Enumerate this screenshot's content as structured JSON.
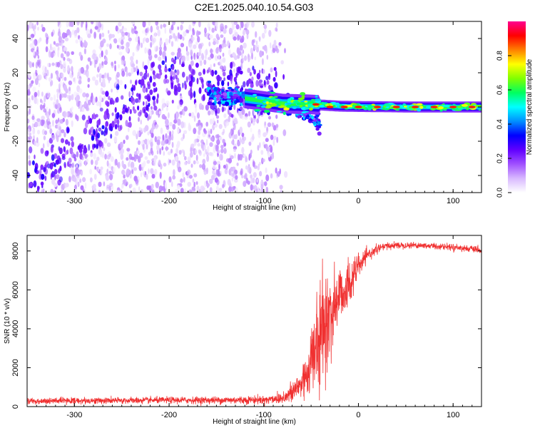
{
  "title": "C2E1.2025.040.10.54.G03",
  "chart_data": [
    {
      "type": "heatmap",
      "xlabel": "Height of straight line (km)",
      "ylabel": "Frequency (Hz)",
      "xlim": [
        -350,
        130
      ],
      "ylim": [
        -50,
        50
      ],
      "xticks": [
        -300,
        -200,
        -100,
        0,
        100
      ],
      "yticks": [
        -40,
        -20,
        0,
        20,
        40
      ],
      "colorbar": {
        "label": "Normalized spectral amplitude",
        "range": [
          0,
          1
        ],
        "ticks": [
          0.0,
          0.2,
          0.4,
          0.6,
          0.8
        ],
        "colormap": [
          "#ffffff",
          "#d8b8ff",
          "#a050ff",
          "#6000ff",
          "#0000ff",
          "#0090ff",
          "#00ffff",
          "#00ff60",
          "#80ff00",
          "#ffff00",
          "#ff8000",
          "#ff0000",
          "#ff0090"
        ]
      },
      "features": {
        "diffuse_region_x": [
          -350,
          -100
        ],
        "diffuse_band_trend": [
          {
            "x": -340,
            "y": -40
          },
          {
            "x": -300,
            "y": -22
          },
          {
            "x": -250,
            "y": 0
          },
          {
            "x": -200,
            "y": 18
          },
          {
            "x": -150,
            "y": 10
          }
        ],
        "converging_track": [
          {
            "x": -160,
            "y": 8
          },
          {
            "x": -120,
            "y": 5
          },
          {
            "x": -90,
            "y": 3
          },
          {
            "x": -70,
            "y": 0
          },
          {
            "x": -50,
            "y": -5
          },
          {
            "x": -40,
            "y": -10
          }
        ],
        "main_line": [
          {
            "x": -120,
            "y": 5
          },
          {
            "x": -80,
            "y": 2
          },
          {
            "x": -50,
            "y": 1.5
          },
          {
            "x": -20,
            "y": 0.5
          },
          {
            "x": 0,
            "y": 0.3
          },
          {
            "x": 50,
            "y": 0
          },
          {
            "x": 100,
            "y": 0
          },
          {
            "x": 130,
            "y": 0
          }
        ],
        "peak_amplitude_points": [
          {
            "x": -45,
            "y": 1.5
          },
          {
            "x": -30,
            "y": 0
          },
          {
            "x": -15,
            "y": 0
          },
          {
            "x": 0,
            "y": 0
          },
          {
            "x": 20,
            "y": 0
          },
          {
            "x": 40,
            "y": 0
          },
          {
            "x": 60,
            "y": 0
          },
          {
            "x": 80,
            "y": 0
          },
          {
            "x": 100,
            "y": 0
          },
          {
            "x": 120,
            "y": 0
          }
        ]
      }
    },
    {
      "type": "line",
      "xlabel": "Height of straight line (km)",
      "ylabel": "SNR (10 * v/v)",
      "xlim": [
        -350,
        130
      ],
      "ylim": [
        0,
        8800
      ],
      "xticks": [
        -300,
        -200,
        -100,
        0,
        100
      ],
      "yticks": [
        0,
        2000,
        4000,
        6000,
        8000
      ],
      "line_color": "#f03030",
      "series": [
        {
          "x": [
            -350,
            -300,
            -250,
            -200,
            -150,
            -100,
            -80,
            -70,
            -60,
            -55,
            -50,
            -45,
            -40,
            -35,
            -30,
            -25,
            -20,
            -15,
            -10,
            -5,
            0,
            5,
            10,
            20,
            30,
            40,
            60,
            80,
            100,
            120,
            130
          ],
          "values": [
            280,
            300,
            310,
            330,
            330,
            350,
            450,
            700,
            1200,
            1700,
            2300,
            3000,
            3600,
            4300,
            4600,
            5200,
            5800,
            6000,
            6200,
            6800,
            7200,
            7500,
            7800,
            8100,
            8250,
            8300,
            8300,
            8250,
            8200,
            8100,
            8000
          ],
          "noise": [
            150,
            150,
            150,
            150,
            170,
            200,
            300,
            500,
            900,
            1300,
            1600,
            2000,
            2200,
            2400,
            2000,
            1800,
            1500,
            1300,
            1100,
            900,
            500,
            350,
            250,
            200,
            180,
            150,
            150,
            150,
            150,
            150,
            150
          ]
        }
      ]
    }
  ]
}
